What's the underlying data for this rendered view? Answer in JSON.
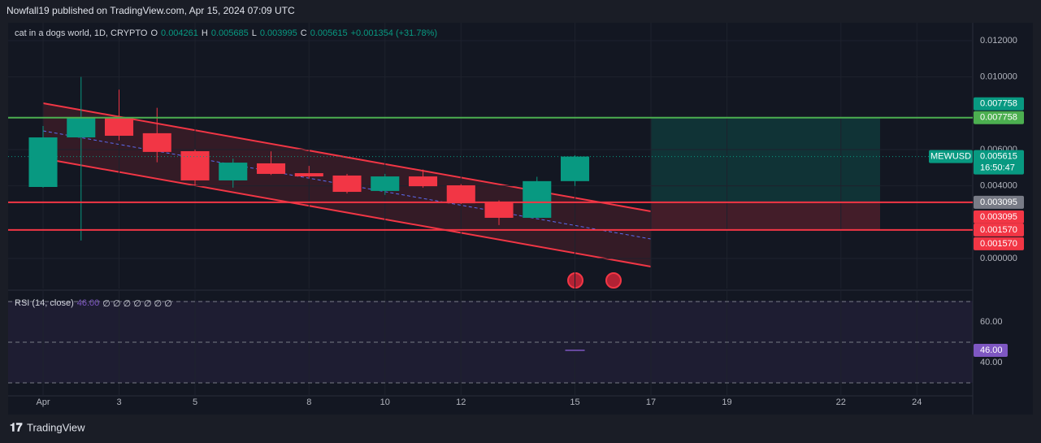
{
  "header": {
    "title": "Nowfall19 published on TradingView.com, Apr 15, 2024 07:09 UTC"
  },
  "footer": {
    "brand": "TradingView"
  },
  "chart_data": [
    {
      "type": "candlestick",
      "title": "cat in a dogs world, 1D, CRYPTO",
      "symbol": "MEWUSD",
      "legend_labels": {
        "open": "O",
        "high": "H",
        "low": "L",
        "close": "C"
      },
      "change_label": "+0.001354 (+31.78%)",
      "countdown": "16:50:47",
      "x": [
        1,
        2,
        3,
        4,
        5,
        6,
        7,
        8,
        9,
        10,
        11,
        12,
        13,
        14,
        15
      ],
      "open": [
        0.00394,
        0.00667,
        0.00775,
        0.0069,
        0.00591,
        0.0043,
        0.00524,
        0.0047,
        0.00457,
        0.00372,
        0.00452,
        0.00403,
        0.00309,
        0.00224,
        0.004261
      ],
      "high": [
        0.0073,
        0.01,
        0.0093,
        0.0083,
        0.006,
        0.0055,
        0.0059,
        0.0051,
        0.00466,
        0.00466,
        0.0049,
        0.0041,
        0.0032,
        0.0045,
        0.005685
      ],
      "low": [
        0.0039,
        0.00099,
        0.0065,
        0.0053,
        0.004,
        0.0039,
        0.0046,
        0.0044,
        0.00358,
        0.0035,
        0.0039,
        0.003,
        0.00184,
        0.00224,
        0.003995
      ],
      "close": [
        0.00667,
        0.00775,
        0.00676,
        0.00587,
        0.0043,
        0.00528,
        0.00466,
        0.00452,
        0.00367,
        0.00452,
        0.00398,
        0.00304,
        0.00224,
        0.00426,
        0.005615
      ],
      "up_color": "#089981",
      "down_color": "#f23645",
      "xlim": [
        0.08,
        25.47
      ],
      "xticks": [
        {
          "value": 1,
          "label": "Apr"
        },
        3,
        5,
        8,
        10,
        12,
        15,
        17,
        19,
        22,
        24
      ],
      "ylim": [
        -0.001657,
        0.012985
      ],
      "yticks": [
        {
          "value": 0,
          "label": "0.000000"
        },
        {
          "value": 0.004,
          "label": "0.004000"
        },
        {
          "value": 0.006,
          "label": "0.006000"
        },
        {
          "value": 0.01,
          "label": "0.010000"
        },
        {
          "value": 0.012,
          "label": "0.012000"
        }
      ],
      "price_lines": [
        {
          "value": 0.007758,
          "label": "0.007758",
          "color": "#4caf50"
        },
        {
          "value": 0.003095,
          "label": "0.003095",
          "color": "#f23645"
        },
        {
          "value": 0.00157,
          "label": "0.001570",
          "color": "#f23645"
        }
      ],
      "grid": true
    },
    {
      "type": "line",
      "title": "RSI (14, close)",
      "x": [
        15
      ],
      "values": [
        46
      ],
      "value_labels": [
        "46.00"
      ],
      "color": "#7e57c2",
      "na_label": "∅ ∅ ∅ ∅ ∅ ∅ ∅",
      "ylim": [
        24.4,
        75.2
      ],
      "yticks": [
        {
          "value": 60,
          "label": "60.00"
        },
        {
          "value": 40,
          "label": "40.00"
        }
      ],
      "bands": [
        70,
        50,
        30
      ]
    }
  ]
}
